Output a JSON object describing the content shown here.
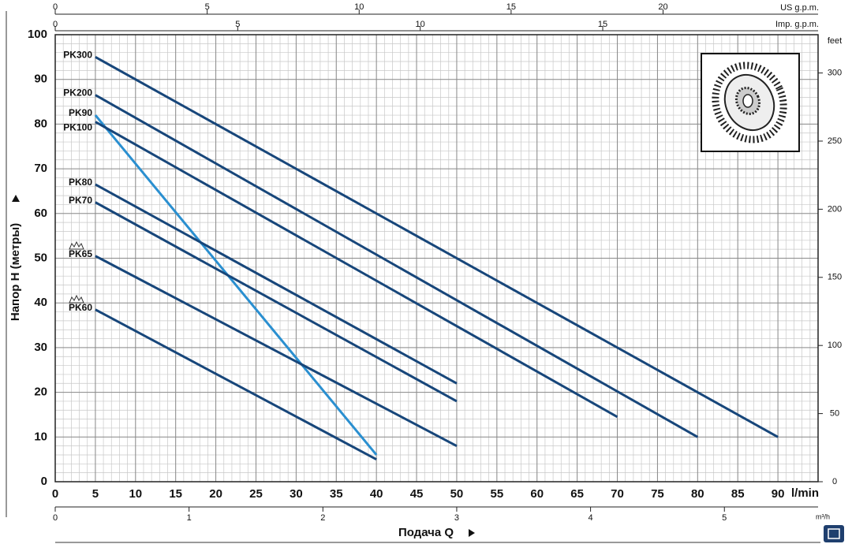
{
  "chart_data": {
    "type": "line",
    "x_label": "Подача Q",
    "x_unit": "l/min",
    "y_label": "Напор H (метры)",
    "xlim": [
      0,
      95
    ],
    "xticks": [
      0,
      5,
      10,
      15,
      20,
      25,
      30,
      35,
      40,
      45,
      50,
      55,
      60,
      65,
      70,
      75,
      80,
      85,
      90
    ],
    "ylim": [
      0,
      100
    ],
    "yticks": [
      0,
      10,
      20,
      30,
      40,
      50,
      60,
      70,
      80,
      90,
      100
    ],
    "minor_grid_step": [
      1,
      2
    ],
    "x2_label": "US g.p.m.",
    "x2lim": [
      0,
      25.1
    ],
    "x2ticks": [
      0,
      5,
      10,
      15,
      20
    ],
    "x3_label": "Imp. g.p.m.",
    "x3lim": [
      0,
      20.9
    ],
    "x3ticks": [
      0,
      5,
      10,
      15
    ],
    "x4_label": "m³/h",
    "x4lim": [
      0,
      5.7
    ],
    "x4ticks": [
      0,
      1,
      2,
      3,
      4,
      5
    ],
    "y2_label": "feet",
    "y2lim": [
      0,
      328.1
    ],
    "y2ticks": [
      0,
      50,
      100,
      150,
      200,
      250,
      300
    ],
    "series": [
      {
        "name": "PK300",
        "color": "#17467a",
        "x": [
          5,
          90
        ],
        "values": [
          95,
          10
        ]
      },
      {
        "name": "PK200",
        "color": "#17467a",
        "x": [
          5,
          80
        ],
        "values": [
          86.5,
          10
        ]
      },
      {
        "name": "PK90",
        "color": "#2a8fd0",
        "x": [
          5,
          40
        ],
        "values": [
          82,
          6
        ]
      },
      {
        "name": "PK100",
        "color": "#17467a",
        "x": [
          5,
          70
        ],
        "values": [
          80.5,
          14.5
        ]
      },
      {
        "name": "PK80",
        "color": "#17467a",
        "x": [
          5,
          50
        ],
        "values": [
          66.5,
          22
        ]
      },
      {
        "name": "PK70",
        "color": "#17467a",
        "x": [
          5,
          50
        ],
        "values": [
          62.5,
          18
        ]
      },
      {
        "name": "PK65",
        "color": "#17467a",
        "x": [
          5,
          50
        ],
        "values": [
          50.5,
          8
        ]
      },
      {
        "name": "PK60",
        "color": "#17467a",
        "x": [
          5,
          40
        ],
        "values": [
          38.5,
          5
        ]
      }
    ]
  }
}
